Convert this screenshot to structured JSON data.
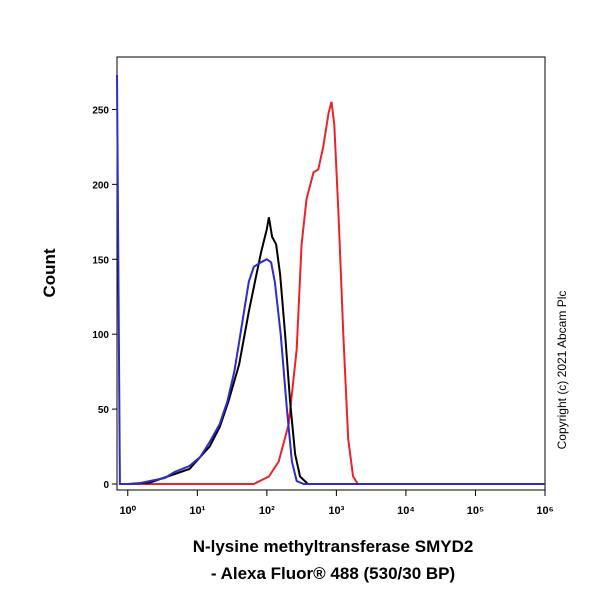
{
  "chart_data": {
    "type": "line",
    "ylabel": "Count",
    "xlabel": [
      "N-lysine methyltransferase SMYD2",
      "- Alexa Fluor® 488 (530/30 BP)"
    ],
    "annotation": "Copyright (c) 2021 Abcam Plc",
    "log_x": true,
    "xlim": [
      0.7,
      1000000
    ],
    "ylim": [
      -4,
      285
    ],
    "xticks": [
      {
        "value": 1,
        "label": "10⁰"
      },
      {
        "value": 10,
        "label": "10¹"
      },
      {
        "value": 100,
        "label": "10²"
      },
      {
        "value": 1000,
        "label": "10³"
      },
      {
        "value": 10000,
        "label": "10⁴"
      },
      {
        "value": 100000,
        "label": "10⁵"
      },
      {
        "value": 1000000,
        "label": "10⁶"
      }
    ],
    "yticks": [
      0,
      50,
      100,
      150,
      200,
      250
    ],
    "series": [
      {
        "color": "#e8242a",
        "x": [
          1,
          65,
          107,
          148,
          206,
          269,
          316,
          372,
          468,
          550,
          646,
          776,
          851,
          933,
          1072,
          1259,
          1479,
          1738,
          2042,
          1000000
        ],
        "values": [
          0,
          0,
          5,
          15,
          40,
          90,
          160,
          190,
          208,
          210,
          225,
          248,
          255,
          240,
          180,
          100,
          30,
          5,
          0,
          0
        ]
      },
      {
        "color": "#000000",
        "x": [
          1,
          2.1,
          7.7,
          15,
          21,
          28,
          40,
          55,
          71,
          83,
          100,
          107,
          119,
          136,
          155,
          183,
          216,
          255,
          300,
          390,
          1000000
        ],
        "values": [
          0,
          1,
          10,
          25,
          38,
          55,
          80,
          115,
          140,
          155,
          170,
          178,
          165,
          160,
          140,
          100,
          55,
          20,
          5,
          0,
          0
        ]
      },
      {
        "color": "#2b2bd0",
        "x": [
          0.7,
          0.77,
          1.3,
          2.1,
          3.4,
          4.7,
          7.7,
          11,
          15,
          21,
          27,
          34,
          40,
          47,
          55,
          65,
          82,
          100,
          115,
          130,
          158,
          194,
          229,
          269,
          339,
          1000000
        ],
        "values": [
          273,
          0,
          0,
          2,
          4,
          8,
          12,
          18,
          28,
          40,
          55,
          75,
          95,
          115,
          135,
          145,
          148,
          150,
          148,
          135,
          100,
          50,
          15,
          2,
          0,
          0
        ]
      }
    ]
  }
}
